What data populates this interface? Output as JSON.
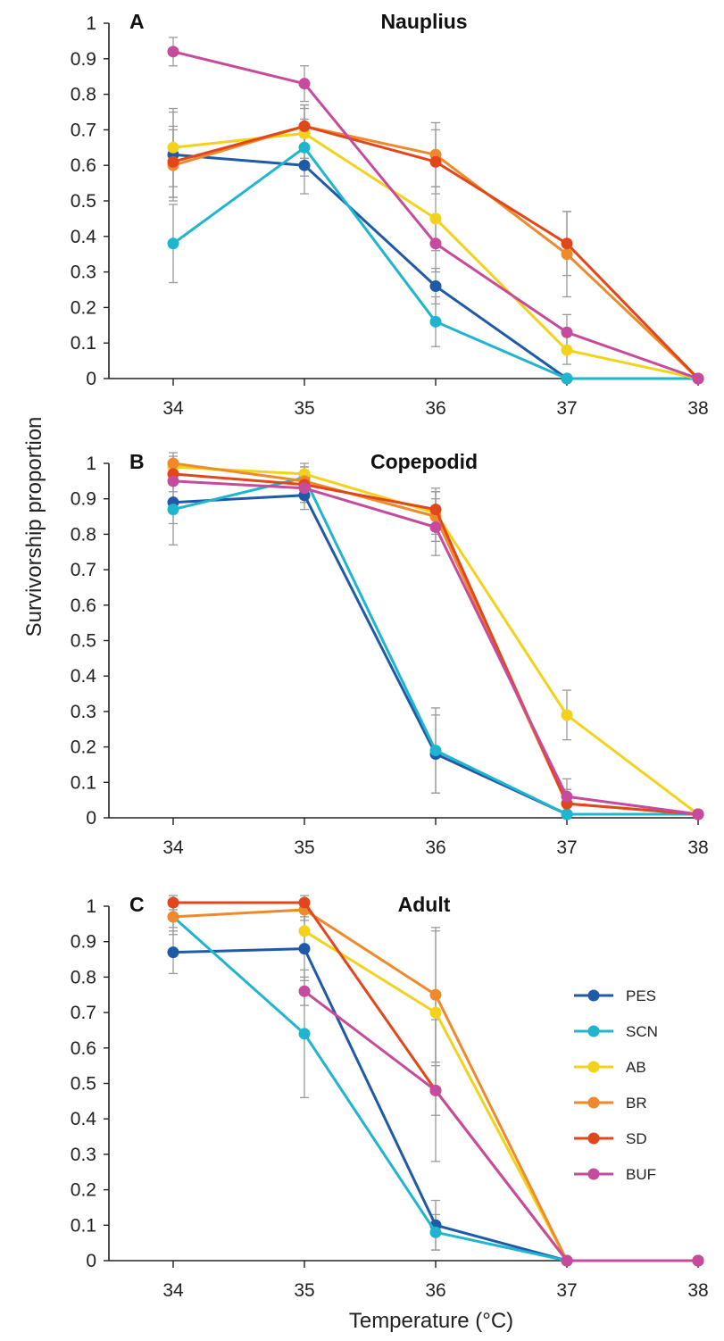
{
  "chart_data": {
    "type": "line",
    "ylabel": "Survivorship proportion",
    "xlabel": "Temperature (°C)",
    "x_ticks": [
      "34",
      "35",
      "36",
      "37",
      "38"
    ],
    "y_ticks": [
      "0",
      "0.1",
      "0.2",
      "0.3",
      "0.4",
      "0.5",
      "0.6",
      "0.7",
      "0.8",
      "0.9",
      "1"
    ],
    "ylim": [
      0,
      1
    ],
    "xlim": [
      33.5,
      38
    ],
    "grid": false,
    "legend": {
      "placement": "right (panel C)",
      "entries": [
        {
          "name": "PES",
          "color": "#1f5aa8"
        },
        {
          "name": "SCN",
          "color": "#1fb5cf"
        },
        {
          "name": "AB",
          "color": "#f2d21b"
        },
        {
          "name": "BR",
          "color": "#ef8a2c"
        },
        {
          "name": "SD",
          "color": "#e2461b"
        },
        {
          "name": "BUF",
          "color": "#c64b9c"
        }
      ]
    },
    "panels": [
      {
        "letter": "A",
        "title": "Nauplius",
        "series": [
          {
            "name": "PES",
            "color": "#1f5aa8",
            "x": [
              34,
              35,
              36,
              37,
              38
            ],
            "y": [
              0.63,
              0.6,
              0.26,
              0.0,
              0.0
            ],
            "err": [
              0.12,
              0.08,
              0.05,
              0.0,
              0.0
            ]
          },
          {
            "name": "SCN",
            "color": "#1fb5cf",
            "x": [
              34,
              35,
              36,
              37,
              38
            ],
            "y": [
              0.38,
              0.65,
              0.16,
              0.0,
              0.0
            ],
            "err": [
              0.11,
              0.08,
              0.07,
              0.0,
              0.0
            ]
          },
          {
            "name": "AB",
            "color": "#f2d21b",
            "x": [
              34,
              35,
              36,
              37,
              38
            ],
            "y": [
              0.65,
              0.69,
              0.45,
              0.08,
              0.0
            ],
            "err": [
              0.11,
              0.07,
              0.09,
              0.04,
              0.0
            ]
          },
          {
            "name": "BR",
            "color": "#ef8a2c",
            "x": [
              34,
              35,
              36,
              37,
              38
            ],
            "y": [
              0.6,
              0.71,
              0.63,
              0.35,
              0.0
            ],
            "err": [
              0.1,
              0.06,
              0.09,
              0.12,
              0.0
            ]
          },
          {
            "name": "SD",
            "color": "#e2461b",
            "x": [
              34,
              35,
              36,
              37,
              38
            ],
            "y": [
              0.61,
              0.71,
              0.61,
              0.38,
              0.0
            ],
            "err": [
              0.1,
              0.06,
              0.09,
              0.09,
              0.0
            ]
          },
          {
            "name": "BUF",
            "color": "#c64b9c",
            "x": [
              34,
              35,
              36,
              37,
              38
            ],
            "y": [
              0.92,
              0.83,
              0.38,
              0.13,
              0.0
            ],
            "err": [
              0.04,
              0.05,
              0.08,
              0.05,
              0.0
            ]
          }
        ]
      },
      {
        "letter": "B",
        "title": "Copepodid",
        "series": [
          {
            "name": "PES",
            "color": "#1f5aa8",
            "x": [
              34,
              35,
              36,
              37,
              38
            ],
            "y": [
              0.89,
              0.91,
              0.18,
              0.01,
              0.01
            ],
            "err": [
              0.06,
              0.04,
              0.11,
              0.0,
              0.0
            ]
          },
          {
            "name": "SCN",
            "color": "#1fb5cf",
            "x": [
              34,
              35,
              36,
              37,
              38
            ],
            "y": [
              0.87,
              0.96,
              0.19,
              0.01,
              0.01
            ],
            "err": [
              0.1,
              0.03,
              0.12,
              0.0,
              0.0
            ]
          },
          {
            "name": "AB",
            "color": "#f2d21b",
            "x": [
              34,
              35,
              36,
              37,
              38
            ],
            "y": [
              0.99,
              0.97,
              0.86,
              0.29,
              0.01
            ],
            "err": [
              0.03,
              0.03,
              0.06,
              0.07,
              0.0
            ]
          },
          {
            "name": "BR",
            "color": "#ef8a2c",
            "x": [
              34,
              35,
              36,
              37,
              38
            ],
            "y": [
              1.0,
              0.95,
              0.85,
              0.04,
              0.01
            ],
            "err": [
              0.03,
              0.04,
              0.07,
              0.04,
              0.0
            ]
          },
          {
            "name": "SD",
            "color": "#e2461b",
            "x": [
              34,
              35,
              36,
              37,
              38
            ],
            "y": [
              0.97,
              0.94,
              0.87,
              0.04,
              0.01
            ],
            "err": [
              0.03,
              0.04,
              0.06,
              0.04,
              0.0
            ]
          },
          {
            "name": "BUF",
            "color": "#c64b9c",
            "x": [
              34,
              35,
              36,
              37,
              38
            ],
            "y": [
              0.95,
              0.93,
              0.82,
              0.06,
              0.01
            ],
            "err": [
              0.03,
              0.04,
              0.08,
              0.05,
              0.0
            ]
          }
        ]
      },
      {
        "letter": "C",
        "title": "Adult",
        "series": [
          {
            "name": "PES",
            "color": "#1f5aa8",
            "x": [
              34,
              35,
              36,
              37,
              38
            ],
            "y": [
              0.87,
              0.88,
              0.1,
              0.0,
              0.0
            ],
            "err": [
              0.06,
              0.09,
              0.07,
              0.0,
              0.0
            ]
          },
          {
            "name": "SCN",
            "color": "#1fb5cf",
            "x": [
              34,
              35,
              36,
              37,
              38
            ],
            "y": [
              0.97,
              0.64,
              0.08,
              0.0,
              0.0
            ],
            "err": [
              0.03,
              0.18,
              0.05,
              0.0,
              0.0
            ]
          },
          {
            "name": "AB",
            "color": "#f2d21b",
            "x": [
              35,
              36,
              37,
              38
            ],
            "y": [
              0.93,
              0.7,
              0.0,
              0.0
            ],
            "err": [
              0.06,
              0.23,
              0.0,
              0.0
            ]
          },
          {
            "name": "BR",
            "color": "#ef8a2c",
            "x": [
              34,
              35,
              36,
              37,
              38
            ],
            "y": [
              0.97,
              0.99,
              0.75,
              0.0,
              0.0
            ],
            "err": [
              0.05,
              0.03,
              0.19,
              0.0,
              0.0
            ]
          },
          {
            "name": "SD",
            "color": "#e2461b",
            "x": [
              34,
              35,
              36,
              37,
              38
            ],
            "y": [
              1.01,
              1.01,
              0.48,
              0.0,
              0.0
            ],
            "err": [
              0.02,
              0.02,
              0.2,
              0.0,
              0.0
            ]
          },
          {
            "name": "BUF",
            "color": "#c64b9c",
            "x": [
              35,
              36,
              37,
              38
            ],
            "y": [
              0.76,
              0.48,
              0.0,
              0.0
            ],
            "err": [
              0.04,
              0.07,
              0.0,
              0.0
            ]
          }
        ]
      }
    ]
  }
}
